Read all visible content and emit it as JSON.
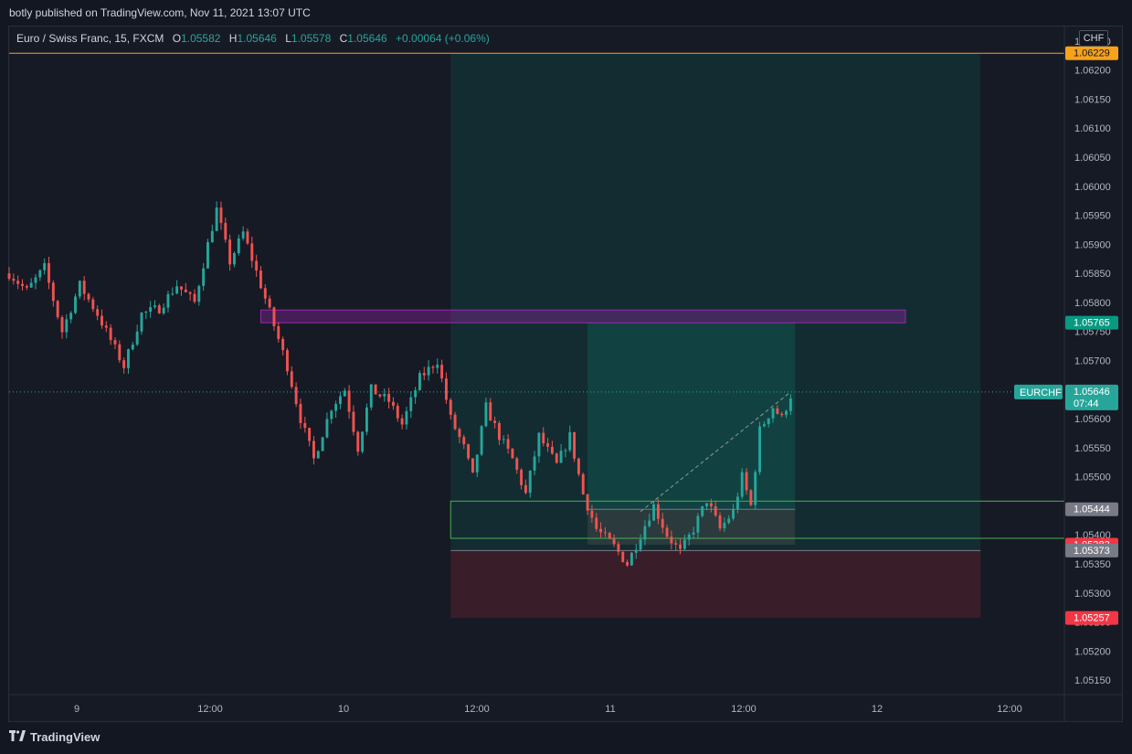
{
  "header": {
    "published": "botly published on TradingView.com, Nov 11, 2021 13:07 UTC"
  },
  "legend": {
    "symbol": "Euro / Swiss Franc, 15, FXCM",
    "o_label": "O",
    "o_value": "1.05582",
    "h_label": "H",
    "h_value": "1.05646",
    "l_label": "L",
    "l_value": "1.05578",
    "c_label": "C",
    "c_value": "1.05646",
    "change": "+0.00064 (+0.06%)"
  },
  "currency": "CHF",
  "footer": {
    "brand": "TradingView",
    "logo_icon": "tradingview-logo-icon"
  },
  "colors": {
    "up": "#26a69a",
    "down": "#ef5350",
    "bg": "#161a25",
    "target": "#f7a21b",
    "purple": "#9c27b0",
    "green_zone": "#4caf50"
  },
  "chart_data": {
    "type": "candlestick",
    "symbol": "EURCHF",
    "ylim": [
      1.05125,
      1.06275
    ],
    "x_ticks": [
      "9",
      "12:00",
      "10",
      "12:00",
      "11",
      "12:00",
      "12",
      "12:00"
    ],
    "y_ticks": [
      "1.06250",
      "1.06200",
      "1.06150",
      "1.06100",
      "1.06050",
      "1.06000",
      "1.05950",
      "1.05900",
      "1.05850",
      "1.05800",
      "1.05750",
      "1.05700",
      "1.05650",
      "1.05600",
      "1.05550",
      "1.05500",
      "1.05450",
      "1.05400",
      "1.05350",
      "1.05300",
      "1.05250",
      "1.05200",
      "1.05150"
    ],
    "price_labels": [
      {
        "value": "1.06229",
        "color": "#f7a21b",
        "text_color": "#131722"
      },
      {
        "value": "1.05765",
        "color": "#089981",
        "text_color": "#ffffff"
      },
      {
        "value": "1.05646",
        "sub": "07:44",
        "color": "#26a69a",
        "text_color": "#ffffff",
        "tag": "EURCHF"
      },
      {
        "value": "1.05444",
        "color": "#787b86",
        "text_color": "#ffffff"
      },
      {
        "value": "1.05383",
        "color": "#f23645",
        "text_color": "#ffffff"
      },
      {
        "value": "1.05373",
        "color": "#787b86",
        "text_color": "#ffffff"
      },
      {
        "value": "1.05257",
        "color": "#f23645",
        "text_color": "#ffffff"
      }
    ],
    "anchors": [
      {
        "t": 0,
        "p": 1.0585
      },
      {
        "t": 4,
        "p": 1.0582
      },
      {
        "t": 8,
        "p": 1.0586
      },
      {
        "t": 12,
        "p": 1.0575
      },
      {
        "t": 16,
        "p": 1.0583
      },
      {
        "t": 20,
        "p": 1.0578
      },
      {
        "t": 26,
        "p": 1.0569
      },
      {
        "t": 30,
        "p": 1.0578
      },
      {
        "t": 34,
        "p": 1.0579
      },
      {
        "t": 38,
        "p": 1.0583
      },
      {
        "t": 42,
        "p": 1.058
      },
      {
        "t": 45,
        "p": 1.059
      },
      {
        "t": 47,
        "p": 1.0596
      },
      {
        "t": 50,
        "p": 1.0587
      },
      {
        "t": 53,
        "p": 1.0592
      },
      {
        "t": 57,
        "p": 1.0583
      },
      {
        "t": 60,
        "p": 1.0576
      },
      {
        "t": 63,
        "p": 1.0569
      },
      {
        "t": 66,
        "p": 1.056
      },
      {
        "t": 69,
        "p": 1.0553
      },
      {
        "t": 73,
        "p": 1.0562
      },
      {
        "t": 76,
        "p": 1.0565
      },
      {
        "t": 79,
        "p": 1.0555
      },
      {
        "t": 82,
        "p": 1.0565
      },
      {
        "t": 86,
        "p": 1.0563
      },
      {
        "t": 89,
        "p": 1.0559
      },
      {
        "t": 93,
        "p": 1.0567
      },
      {
        "t": 97,
        "p": 1.057
      },
      {
        "t": 100,
        "p": 1.056
      },
      {
        "t": 103,
        "p": 1.0555
      },
      {
        "t": 105,
        "p": 1.055
      },
      {
        "t": 108,
        "p": 1.0562
      },
      {
        "t": 111,
        "p": 1.0557
      },
      {
        "t": 114,
        "p": 1.0553
      },
      {
        "t": 117,
        "p": 1.0547
      },
      {
        "t": 120,
        "p": 1.0557
      },
      {
        "t": 124,
        "p": 1.0552
      },
      {
        "t": 127,
        "p": 1.0557
      },
      {
        "t": 130,
        "p": 1.0547
      },
      {
        "t": 133,
        "p": 1.0541
      },
      {
        "t": 137,
        "p": 1.0538
      },
      {
        "t": 140,
        "p": 1.0535
      },
      {
        "t": 143,
        "p": 1.054
      },
      {
        "t": 146,
        "p": 1.0545
      },
      {
        "t": 149,
        "p": 1.054
      },
      {
        "t": 152,
        "p": 1.0537
      },
      {
        "t": 155,
        "p": 1.0541
      },
      {
        "t": 158,
        "p": 1.0546
      },
      {
        "t": 161,
        "p": 1.0541
      },
      {
        "t": 164,
        "p": 1.0544
      },
      {
        "t": 166,
        "p": 1.055
      },
      {
        "t": 168,
        "p": 1.0545
      },
      {
        "t": 170,
        "p": 1.0558
      },
      {
        "t": 173,
        "p": 1.0562
      },
      {
        "t": 175,
        "p": 1.056
      },
      {
        "t": 177,
        "p": 1.0564
      }
    ],
    "x_range": [
      0,
      239
    ],
    "overlays": {
      "target_line": 1.06229,
      "purple_box": {
        "t0": 57,
        "t1": 203,
        "p_top": 1.05787,
        "p_bottom": 1.05765
      },
      "long_position_big": {
        "t0": 100,
        "t1": 220,
        "entry": 1.05373,
        "target": 1.06229,
        "stop": 1.05257
      },
      "long_position_small": {
        "t0": 131,
        "t1": 178,
        "entry": 1.05444,
        "target": 1.05765,
        "stop": 1.05383
      },
      "green_zone": {
        "t0": 100,
        "t1": 239,
        "p_top": 1.05458,
        "p_bottom": 1.05394
      },
      "current_price": 1.05646
    }
  }
}
